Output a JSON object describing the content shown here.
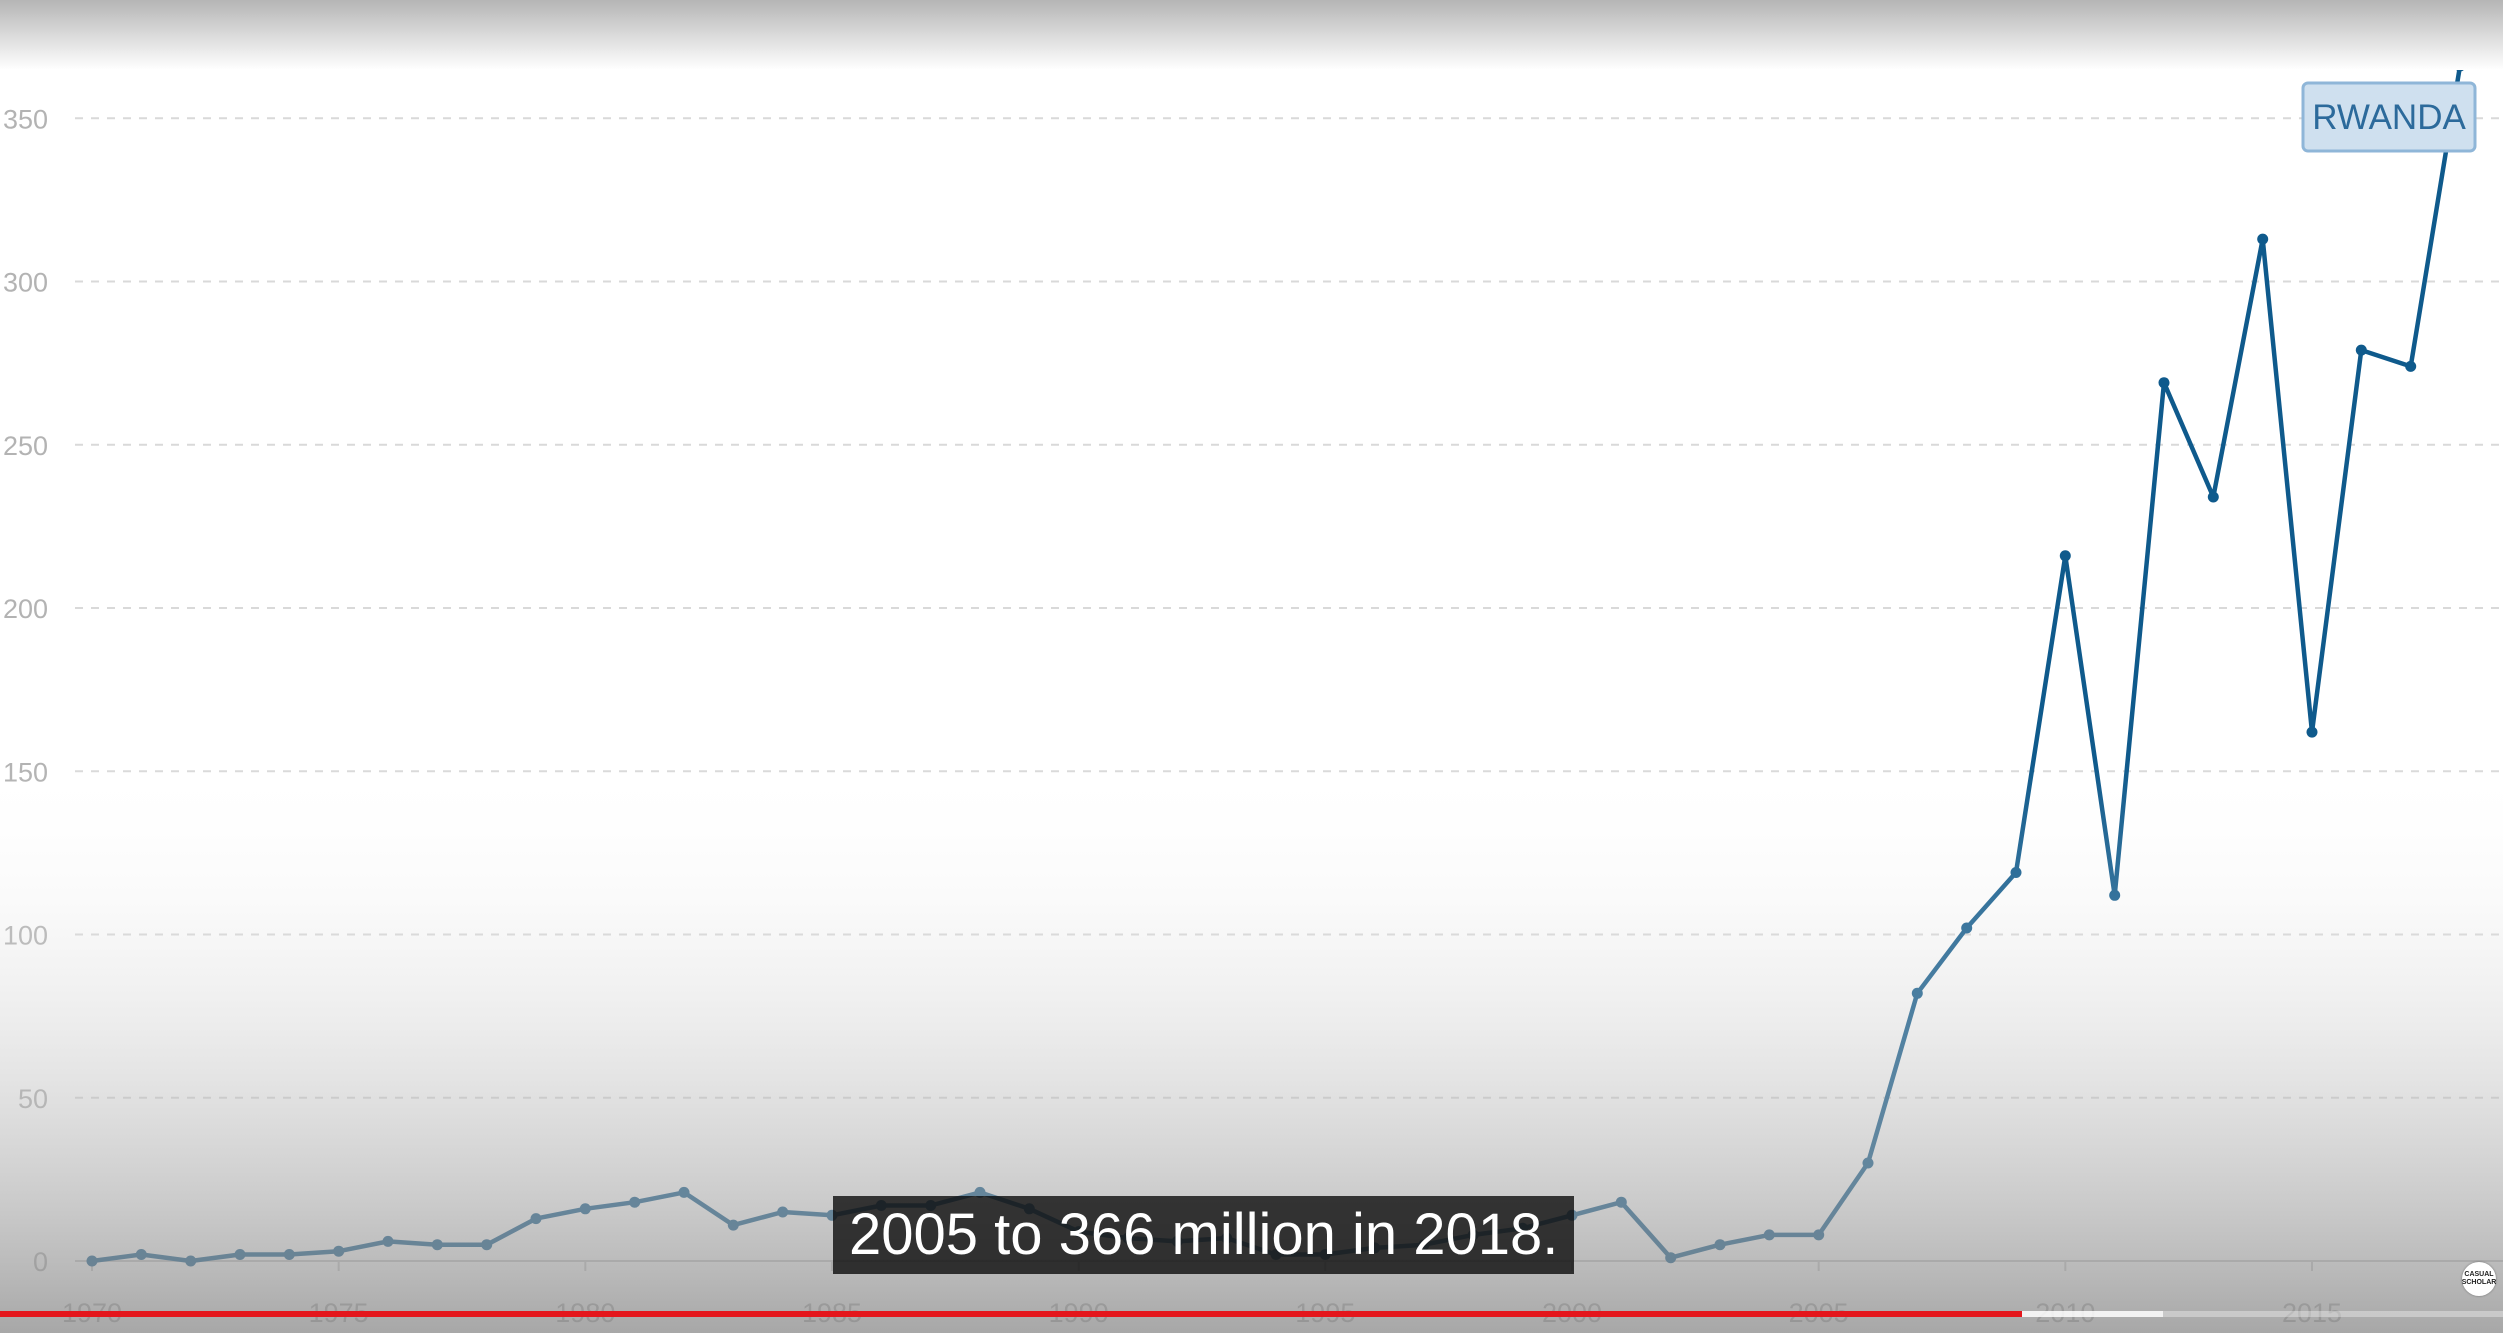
{
  "chart_data": {
    "type": "line",
    "title": "",
    "xlabel": "",
    "ylabel": "",
    "x": [
      1970,
      1971,
      1972,
      1973,
      1974,
      1975,
      1976,
      1977,
      1978,
      1979,
      1980,
      1981,
      1982,
      1983,
      1984,
      1985,
      1986,
      1987,
      1988,
      1989,
      1990,
      1991,
      1992,
      1993,
      1994,
      1995,
      1996,
      1997,
      1998,
      1999,
      2000,
      2001,
      2002,
      2003,
      2004,
      2005,
      2006,
      2007,
      2008,
      2009,
      2010,
      2011,
      2012,
      2013,
      2014,
      2015,
      2016,
      2017,
      2018
    ],
    "series": [
      {
        "name": "RWANDA",
        "color": "#0f5a8c",
        "values": [
          0,
          2,
          0,
          2,
          2,
          3,
          6,
          5,
          5,
          13,
          16,
          18,
          21,
          11,
          15,
          14,
          17,
          17,
          21,
          16,
          9,
          7,
          6,
          7,
          2,
          2,
          4,
          5,
          8,
          10,
          14,
          18,
          1,
          5,
          8,
          8,
          30,
          82,
          102,
          119,
          216,
          112,
          269,
          234,
          313,
          162,
          279,
          274,
          366
        ]
      }
    ],
    "xlim": [
      1970,
      2018
    ],
    "ylim": [
      0,
      366
    ],
    "x_ticks": [
      "1970",
      "1975",
      "1980",
      "1985",
      "1990",
      "1995",
      "2000",
      "2005",
      "2010",
      "2015"
    ],
    "y_ticks": [
      "0",
      "50",
      "100",
      "150",
      "200",
      "250",
      "300",
      "350"
    ],
    "grid": true,
    "legend_placement": "top-right"
  },
  "caption": "2005 to 366 million in 2018.",
  "video": {
    "played_fraction": 0.808,
    "buffered_fraction": 0.864
  },
  "watermark_text": "CASUAL SCHOLAR",
  "colors": {
    "line": "#0f5a8c",
    "progress_played": "#e4161c"
  }
}
